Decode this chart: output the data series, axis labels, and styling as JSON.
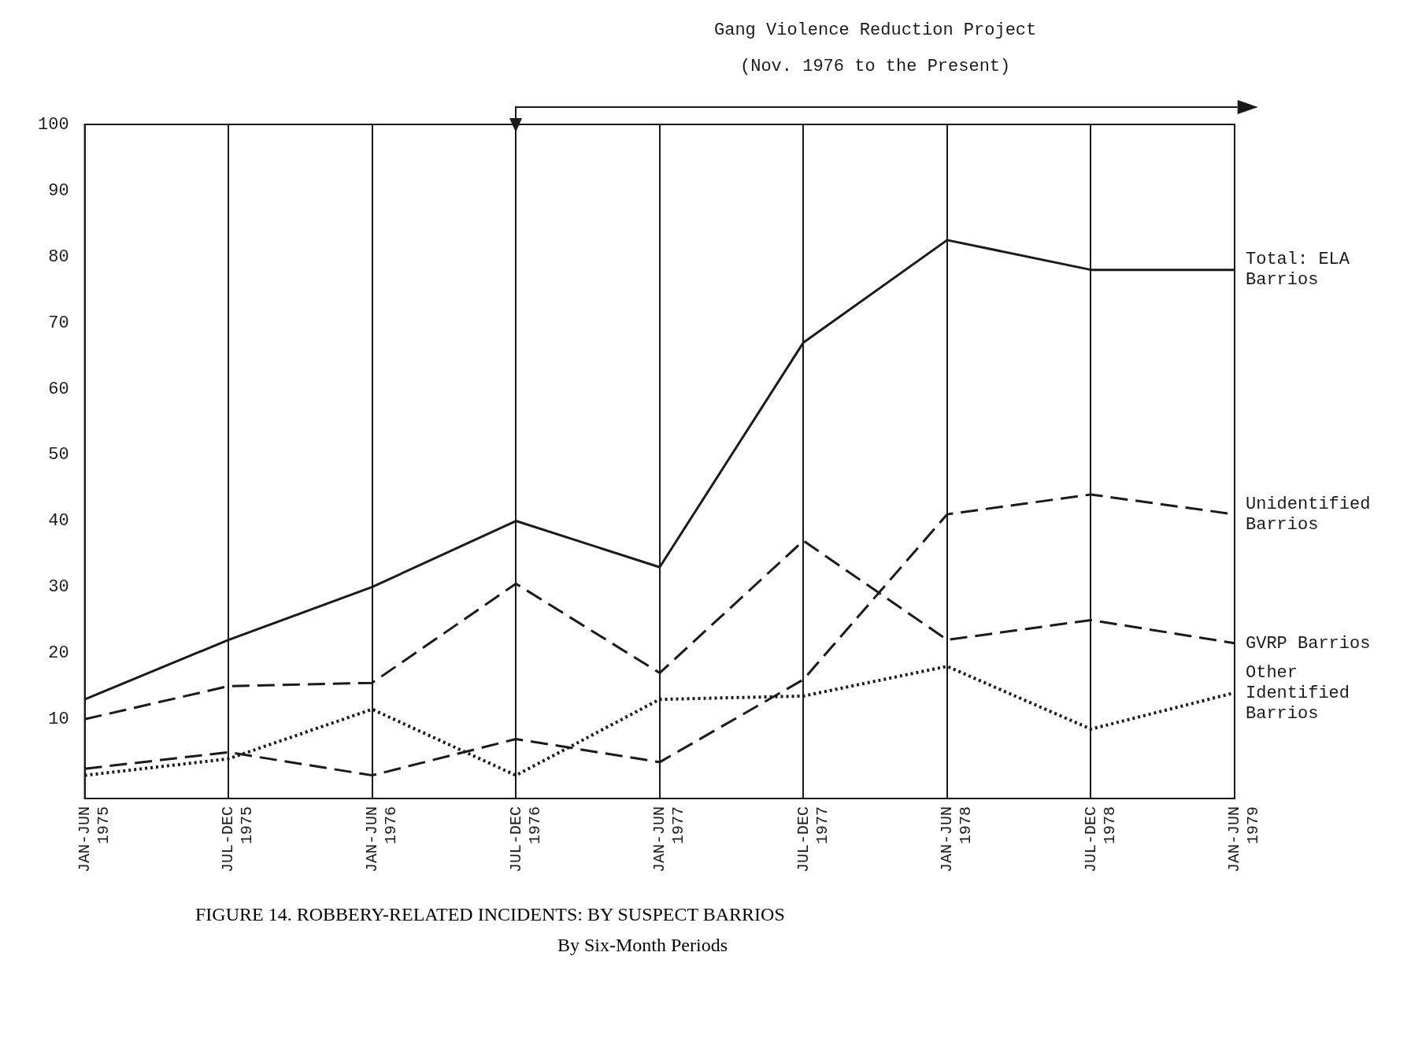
{
  "chart_data": {
    "type": "line",
    "title": "FIGURE 14.  ROBBERY-RELATED INCIDENTS:  BY SUSPECT BARRIOS",
    "subtitle": "By Six-Month Periods",
    "annotations": [
      "Gang Violence Reduction Project",
      "(Nov. 1976 to the Present)"
    ],
    "categories": [
      "JAN-JUN 1975",
      "JUL-DEC 1975",
      "JAN-JUN 1976",
      "JUL-DEC 1976",
      "JAN-JUN 1977",
      "JUL-DEC 1977",
      "JAN-JUN 1978",
      "JUL-DEC 1978",
      "JAN-JUN 1979"
    ],
    "series": [
      {
        "name": "Total: ELA Barrios",
        "color": "#1a1a1a",
        "line_style": "solid",
        "values": [
          13,
          22,
          30,
          40,
          33,
          67,
          82.5,
          78,
          78
        ]
      },
      {
        "name": "Unidentified Barrios",
        "color": "#1a1a1a",
        "line_style": "dashed",
        "values": [
          2.5,
          5,
          1.5,
          7,
          3.5,
          16,
          41,
          44,
          41
        ]
      },
      {
        "name": "GVRP Barrios",
        "color": "#1a1a1a",
        "line_style": "dashed",
        "values": [
          10,
          15,
          15.5,
          30.5,
          17,
          37,
          22,
          25,
          21.5
        ]
      },
      {
        "name": "Other Identified Barrios",
        "color": "#1a1a1a",
        "line_style": "dotted",
        "values": [
          1.5,
          4,
          11.5,
          1.5,
          13,
          13.5,
          18,
          8.5,
          14
        ]
      }
    ],
    "ylim": [
      -2,
      100
    ],
    "yticks": [
      10,
      20,
      30,
      40,
      50,
      60,
      70,
      80,
      90,
      100
    ],
    "grid": "x",
    "legend": false,
    "marker": "none"
  }
}
